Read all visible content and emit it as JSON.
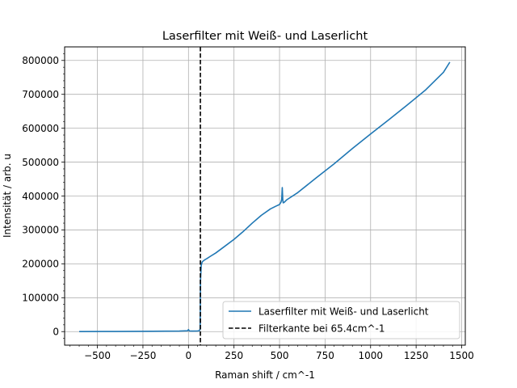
{
  "chart_data": {
    "type": "line",
    "title": "Laserfilter mit Weiß- und Laserlicht",
    "xlabel": "Raman shift / cm^-1",
    "ylabel": "Intensität / arb. u",
    "xlim": [
      -680,
      1520
    ],
    "ylim": [
      -40000,
      840000
    ],
    "xticks": [
      -500,
      -250,
      0,
      250,
      500,
      750,
      1000,
      1250,
      1500
    ],
    "yticks": [
      0,
      100000,
      200000,
      300000,
      400000,
      500000,
      600000,
      700000,
      800000
    ],
    "grid": true,
    "legend_position": "lower-right",
    "series": [
      {
        "name": "Laserfilter mit Weiß- und Laserlicht",
        "color": "#1f77b4",
        "x": [
          -600,
          -400,
          -200,
          -50,
          -5,
          0,
          5,
          20,
          50,
          60,
          64,
          66,
          70,
          75,
          80,
          90,
          100,
          120,
          150,
          200,
          250,
          300,
          350,
          400,
          450,
          480,
          500,
          508,
          512,
          515,
          518,
          520,
          525,
          540,
          600,
          700,
          800,
          900,
          1000,
          1100,
          1200,
          1300,
          1400,
          1435
        ],
        "values": [
          0,
          500,
          1000,
          1500,
          2500,
          6000,
          2000,
          1500,
          2000,
          2500,
          8000,
          150000,
          195000,
          205000,
          208000,
          212000,
          215000,
          222000,
          232000,
          252000,
          272000,
          295000,
          320000,
          343000,
          362000,
          370000,
          375000,
          382000,
          390000,
          425000,
          388000,
          380000,
          381000,
          389000,
          410000,
          453000,
          495000,
          540000,
          583000,
          625000,
          668000,
          712000,
          765000,
          795000
        ]
      },
      {
        "name": "Filterkante bei 65.4cm^-1",
        "color": "#000000",
        "style": "dashed",
        "x_vertical": 65.4
      }
    ]
  }
}
